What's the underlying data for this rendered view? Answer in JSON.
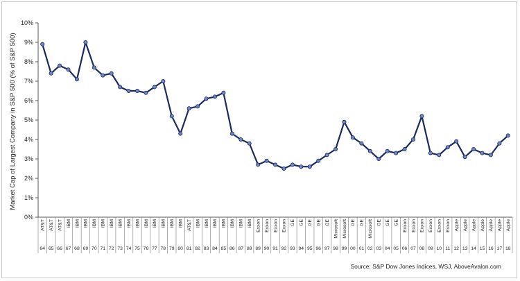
{
  "chart_data": {
    "type": "line",
    "title": "",
    "xlabel": "",
    "ylabel": "Market Cap of Largest Company in S&P 500 (% of S&P 500)",
    "ylim": [
      0,
      10
    ],
    "y_ticks": [
      "0%",
      "1%",
      "2%",
      "3%",
      "4%",
      "5%",
      "6%",
      "7%",
      "8%",
      "9%",
      "10%"
    ],
    "grid": false,
    "source": "Source: S&P Dow Jones Indices, WSJ, AboveAvalon.com",
    "years": [
      "64",
      "65",
      "66",
      "67",
      "68",
      "69",
      "70",
      "71",
      "72",
      "73",
      "74",
      "75",
      "76",
      "77",
      "78",
      "79",
      "80",
      "81",
      "82",
      "83",
      "84",
      "85",
      "86",
      "87",
      "88",
      "89",
      "90",
      "91",
      "92",
      "93",
      "94",
      "95",
      "96",
      "97",
      "98",
      "99",
      "00",
      "01",
      "02",
      "03",
      "04",
      "05",
      "06",
      "07",
      "08",
      "09",
      "10",
      "11",
      "12",
      "13",
      "14",
      "15",
      "16",
      "17",
      "18"
    ],
    "companies": [
      "AT&T",
      "AT&T",
      "AT&T",
      "IBM",
      "IBM",
      "IBM",
      "IBM",
      "IBM",
      "IBM",
      "IBM",
      "IBM",
      "IBM",
      "IBM",
      "IBM",
      "IBM",
      "IBM",
      "IBM",
      "AT&T",
      "IBM",
      "IBM",
      "IBM",
      "IBM",
      "IBM",
      "IBM",
      "IBM",
      "Exxon",
      "Exxon",
      "Exxon",
      "Exxon",
      "GE",
      "GE",
      "GE",
      "GE",
      "GE",
      "Microsoft",
      "Microsoft",
      "GE",
      "GE",
      "Microsoft",
      "GE",
      "GE",
      "GE",
      "Exxon",
      "Exxon",
      "Exxon",
      "Exxon",
      "Exxon",
      "Exxon",
      "Apple",
      "Apple",
      "Apple",
      "Apple",
      "Apple",
      "Apple",
      "Apple"
    ],
    "values": [
      8.9,
      7.4,
      7.8,
      7.6,
      7.1,
      9.0,
      7.7,
      7.3,
      7.4,
      6.7,
      6.5,
      6.5,
      6.4,
      6.7,
      7.0,
      5.2,
      4.3,
      5.6,
      5.7,
      6.1,
      6.2,
      6.4,
      4.3,
      4.0,
      3.8,
      2.7,
      2.9,
      2.7,
      2.5,
      2.7,
      2.6,
      2.6,
      2.9,
      3.2,
      3.5,
      4.9,
      4.1,
      3.8,
      3.4,
      3.0,
      3.4,
      3.3,
      3.5,
      4.0,
      5.2,
      3.3,
      3.2,
      3.6,
      3.9,
      3.1,
      3.5,
      3.3,
      3.2,
      3.8,
      4.2
    ],
    "colors": {
      "line": "#1a2a5e",
      "marker_fill": "#6d86bf",
      "marker_stroke": "#1a2a5e",
      "axis": "#555555"
    }
  }
}
